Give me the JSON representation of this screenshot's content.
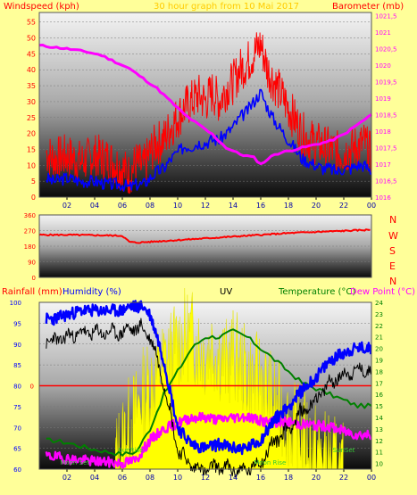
{
  "header": {
    "wind_label": "Windspeed (kph)",
    "title": "30 hour graph from 10 Mai 2017",
    "baro_label": "Barometer (mb)"
  },
  "compass": [
    "N",
    "W",
    "S",
    "E",
    "N"
  ],
  "lower_header": {
    "rain_label": "Rainfall (mm)",
    "humidity_label": "Humidity (%)",
    "uv_label": "UV",
    "temp_label": "Temperature (°C)",
    "dew_label": "Dew Point (°C)"
  },
  "colors": {
    "background": "#ffff99",
    "wind_gust": "#ff0000",
    "wind_avg": "#0000ff",
    "barometer": "#ff00ff",
    "direction": "#ff0000",
    "humidity": "#0000ff",
    "uv": "#ffff00",
    "temperature": "#008000",
    "dew_point": "#ff00ff",
    "rain": "#ff0000"
  },
  "chart_data": [
    {
      "type": "line",
      "x_ticks": [
        "02",
        "04",
        "06",
        "08",
        "10",
        "12",
        "14",
        "16",
        "18",
        "20",
        "22",
        "00"
      ],
      "y_left": {
        "ticks": [
          0,
          5,
          10,
          15,
          20,
          25,
          30,
          35,
          40,
          45,
          50,
          55
        ],
        "range": [
          0,
          58
        ]
      },
      "y_right": {
        "ticks": [
          "1016",
          "1016,5",
          "1017",
          "1017,5",
          "1018",
          "1018,5",
          "1019",
          "1019,5",
          "1020",
          "1020,5",
          "1021",
          "1021,5"
        ],
        "range": [
          1016,
          1021.6
        ]
      },
      "series": [
        {
          "name": "Windspeed (kph)",
          "kind": "gust",
          "x": [
            0.5,
            1,
            2,
            3,
            4,
            5,
            6,
            6.5,
            7,
            7.5,
            8,
            8.5,
            9,
            9.5,
            10,
            10.5,
            11,
            11.5,
            12,
            12.5,
            13,
            13.5,
            14,
            14.5,
            15,
            15.5,
            16,
            16.5,
            17,
            17.5,
            18,
            18.5,
            19,
            19.5,
            20,
            20.5,
            21,
            21.5,
            22,
            22.5,
            23,
            23.5,
            24
          ],
          "values": [
            14,
            12,
            13,
            11,
            13,
            12,
            9,
            7,
            11,
            9,
            14,
            17,
            18,
            22,
            25,
            28,
            30,
            32,
            30,
            33,
            30,
            34,
            36,
            40,
            42,
            45,
            48,
            40,
            36,
            32,
            28,
            24,
            20,
            18,
            17,
            16,
            15,
            14,
            14,
            15,
            16,
            17,
            13
          ]
        },
        {
          "name": "Wind average",
          "kind": "avg",
          "x": [
            0.5,
            1,
            2,
            3,
            4,
            5,
            6,
            6.5,
            7,
            7.5,
            8,
            8.5,
            9,
            9.5,
            10,
            10.5,
            11,
            11.5,
            12,
            12.5,
            13,
            13.5,
            14,
            14.5,
            15,
            15.5,
            16,
            16.5,
            17,
            17.5,
            18,
            18.5,
            19,
            19.5,
            20,
            20.5,
            21,
            21.5,
            22,
            22.5,
            23,
            23.5,
            24
          ],
          "values": [
            6,
            5,
            6,
            5,
            5,
            4,
            4,
            3,
            4,
            4,
            6,
            8,
            9,
            12,
            14,
            16,
            16,
            17,
            17,
            18,
            18,
            20,
            22,
            25,
            27,
            30,
            33,
            28,
            24,
            21,
            18,
            15,
            12,
            11,
            10,
            9,
            9,
            8,
            9,
            9,
            10,
            10,
            8
          ]
        },
        {
          "name": "Barometer (mb)",
          "kind": "pressure",
          "x": [
            0,
            2,
            3.5,
            4.5,
            5.5,
            6.5,
            7.5,
            8.5,
            9.5,
            10.5,
            11.5,
            12.5,
            13.5,
            14.5,
            15.5,
            16,
            17,
            18,
            19,
            20,
            21,
            22,
            23,
            24
          ],
          "values": [
            1020.6,
            1020.5,
            1020.4,
            1020.3,
            1020.1,
            1019.9,
            1019.6,
            1019.3,
            1018.9,
            1018.5,
            1018.2,
            1017.9,
            1017.5,
            1017.3,
            1017.2,
            1017.0,
            1017.3,
            1017.4,
            1017.5,
            1017.6,
            1017.7,
            1017.9,
            1018.2,
            1018.5
          ]
        }
      ]
    },
    {
      "type": "line",
      "x_ticks": [
        "02",
        "04",
        "06",
        "08",
        "10",
        "12",
        "14",
        "16",
        "18",
        "20",
        "22",
        "00"
      ],
      "y_ticks": [
        0,
        90,
        180,
        270,
        360
      ],
      "range": [
        0,
        360
      ],
      "series": [
        {
          "name": "Wind direction",
          "x": [
            0,
            2,
            4,
            6,
            6.5,
            7,
            8,
            9,
            10,
            12,
            14,
            16,
            18,
            20,
            22,
            24
          ],
          "values": [
            245,
            245,
            243,
            240,
            205,
            200,
            205,
            210,
            215,
            225,
            235,
            245,
            255,
            262,
            268,
            275
          ]
        }
      ]
    },
    {
      "type": "line",
      "x_ticks": [
        "02",
        "04",
        "06",
        "08",
        "10",
        "12",
        "14",
        "16",
        "18",
        "20",
        "22",
        "00"
      ],
      "y_left": {
        "ticks": [
          60,
          65,
          70,
          75,
          80,
          85,
          90,
          95,
          100
        ],
        "range": [
          60,
          100
        ]
      },
      "y_right": {
        "ticks": [
          10,
          11,
          12,
          13,
          14,
          15,
          16,
          17,
          18,
          19,
          20,
          21,
          22,
          23,
          24
        ],
        "range": [
          9.5,
          24
        ]
      },
      "rainfall_marker": {
        "label": "0",
        "value": 0
      },
      "annotations": [
        "SunRise",
        "SunSet",
        "Moon Set",
        "Moon Rise"
      ],
      "series": [
        {
          "name": "Humidity (%)",
          "x": [
            0.5,
            1,
            2,
            3,
            4,
            5,
            6,
            6.5,
            7,
            7.5,
            8,
            8.5,
            9,
            10,
            11,
            12,
            13,
            14,
            15,
            16,
            17,
            18,
            19,
            20,
            21,
            22,
            23,
            24
          ],
          "values": [
            96,
            96,
            97,
            98,
            98,
            98,
            98,
            99,
            99,
            99,
            97,
            92,
            86,
            70,
            66,
            65,
            66,
            65,
            65,
            67,
            72,
            75,
            79,
            82,
            86,
            88,
            89,
            89
          ]
        },
        {
          "name": "Temperature (°C)",
          "x": [
            0.5,
            1,
            2,
            3,
            4,
            5,
            6,
            7,
            8,
            9,
            10,
            11,
            12,
            13,
            14,
            15,
            16,
            17,
            18,
            19,
            20,
            21,
            22,
            23,
            24
          ],
          "values": [
            12,
            12,
            11.8,
            11.5,
            11.2,
            11,
            10.8,
            11,
            13,
            16,
            18,
            20,
            21,
            21,
            21.5,
            21,
            20,
            19,
            18,
            17,
            16.5,
            16,
            15.5,
            15,
            15
          ]
        },
        {
          "name": "Dew Point (°C)",
          "x": [
            0.5,
            1,
            2,
            3,
            4,
            5,
            6,
            7,
            8,
            9,
            10,
            11,
            12,
            13,
            14,
            15,
            16,
            17,
            18,
            19,
            20,
            21,
            22,
            23,
            24
          ],
          "values": [
            10.6,
            10.6,
            10.4,
            10.3,
            10.2,
            10.1,
            10,
            10.3,
            12,
            13,
            13.5,
            14,
            14,
            13.8,
            14,
            14.1,
            13.7,
            13.5,
            13.6,
            13.4,
            13.3,
            13.2,
            12.8,
            12.5,
            12.5
          ]
        },
        {
          "name": "UV",
          "x": [
            5.5,
            6,
            6.5,
            7,
            7.5,
            8,
            8.5,
            9,
            9.5,
            10,
            10.5,
            11,
            11.5,
            12,
            12.5,
            13,
            13.5,
            14,
            14.5,
            15,
            15.5,
            16,
            16.5,
            17,
            17.5,
            18,
            18.5,
            19,
            19.5,
            20,
            20.5,
            21,
            21.5,
            22
          ],
          "values": [
            0.5,
            1.5,
            2.5,
            3,
            4,
            4.5,
            5,
            5.5,
            6,
            6.5,
            7,
            7,
            6.5,
            6,
            6.5,
            6,
            5.5,
            6,
            5.5,
            5,
            4.5,
            5,
            4,
            3.5,
            3,
            2.5,
            2,
            2,
            1.5,
            1,
            0.8,
            0.5,
            0.3,
            0
          ]
        }
      ]
    }
  ]
}
